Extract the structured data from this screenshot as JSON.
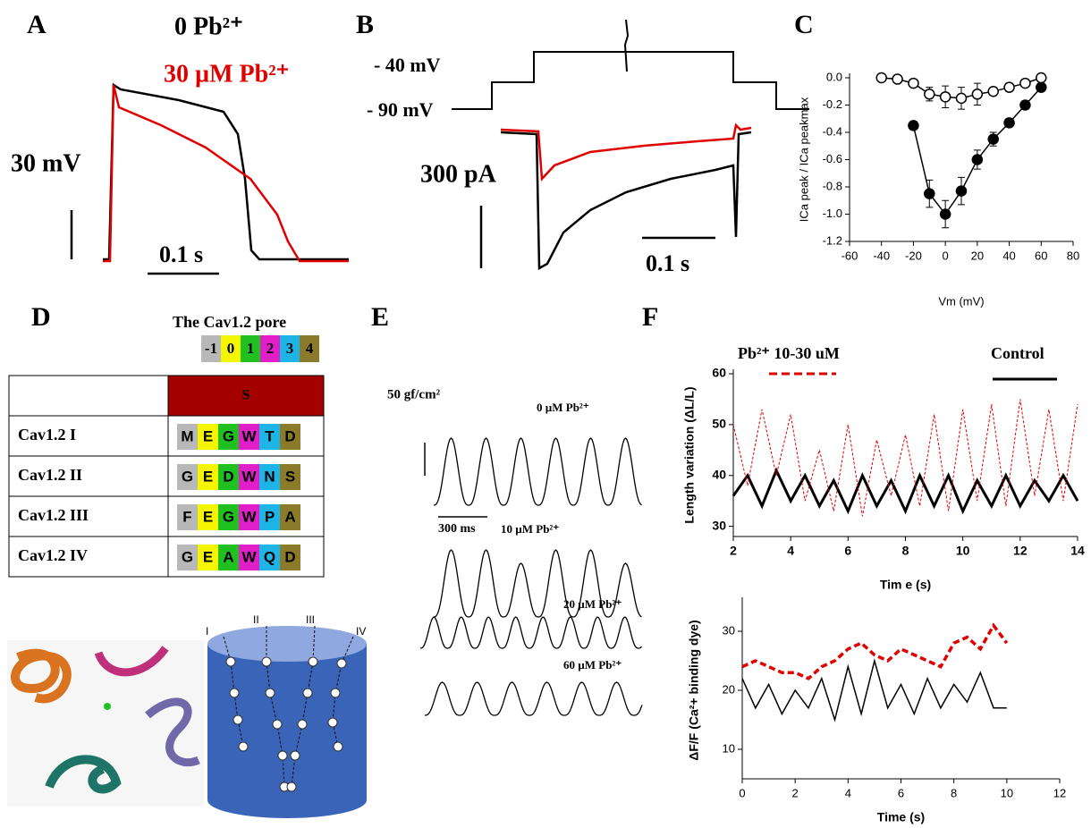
{
  "panels": {
    "a": {
      "label": "A",
      "traces": [
        {
          "name": "0 Pb²⁺",
          "color": "#000000"
        },
        {
          "name": "30 µM Pb²⁺",
          "color": "#e00000"
        }
      ],
      "scale_y": "30 mV",
      "scale_x": "0.1 s"
    },
    "b": {
      "label": "B",
      "steps": [
        "- 40 mV",
        "- 90 mV"
      ],
      "trace_colors": [
        "#000000",
        "#e00000"
      ],
      "scale_y": "300 pA",
      "scale_x": "0.1 s"
    },
    "c": {
      "label": "C"
    },
    "d": {
      "label": "D",
      "title": "The Cav1.2 pore",
      "positions": [
        "-1",
        "0",
        "1",
        "2",
        "3",
        "4"
      ],
      "position_colors": [
        "#b8b8b8",
        "#f5f500",
        "#21c021",
        "#e01fc8",
        "#1fb4e6",
        "#8a7a2a"
      ],
      "column": "S",
      "rows": [
        {
          "name": "Cav1.2 I",
          "residues": [
            "M",
            "E",
            "G",
            "W",
            "T",
            "D"
          ]
        },
        {
          "name": "Cav1.2 II",
          "residues": [
            "G",
            "E",
            "D",
            "W",
            "N",
            "S"
          ]
        },
        {
          "name": "Cav1.2 III",
          "residues": [
            "F",
            "E",
            "G",
            "W",
            "P",
            "A"
          ]
        },
        {
          "name": "Cav1.2 IV",
          "residues": [
            "G",
            "E",
            "A",
            "W",
            "Q",
            "D"
          ]
        }
      ],
      "domains": [
        "I",
        "II",
        "III",
        "IV"
      ]
    },
    "e": {
      "label": "E",
      "scale_y": "50 gf/cm²",
      "scale_x": "300 ms",
      "traces": [
        "0 µM Pb²⁺",
        "10 µM Pb²⁺",
        "20 µM Pb²⁺",
        "60 µM Pb²⁺"
      ]
    },
    "f": {
      "label": "F"
    }
  },
  "chart_data": [
    {
      "type": "scatter",
      "x": [
        -40,
        -30,
        -20,
        -10,
        0,
        10,
        20,
        30,
        40,
        50,
        60
      ],
      "series": [
        {
          "color": "#000000",
          "marker": "filled",
          "values": [
            null,
            null,
            -0.35,
            -0.85,
            -1.0,
            -0.83,
            -0.6,
            -0.45,
            -0.33,
            -0.2,
            -0.07
          ],
          "errors": [
            null,
            null,
            0.03,
            0.1,
            0.1,
            0.1,
            0.07,
            0.05,
            0.03,
            0.03,
            0.02
          ]
        },
        {
          "color": "#000000",
          "marker": "open",
          "values": [
            0,
            -0.01,
            -0.04,
            -0.12,
            -0.14,
            -0.15,
            -0.12,
            -0.1,
            -0.07,
            -0.04,
            0
          ],
          "errors": [
            0.02,
            0.02,
            0.02,
            0.05,
            0.08,
            0.08,
            0.08,
            0.03,
            0.03,
            0.02,
            0.02
          ]
        }
      ],
      "xlim": [
        -60,
        80
      ],
      "xticks": [
        -60,
        -40,
        -20,
        0,
        20,
        40,
        60,
        80
      ],
      "ylim": [
        -1.2,
        0
      ],
      "yticks": [
        {
          "value": 0,
          "label": "0.0"
        },
        -0.2,
        -0.4,
        -0.6,
        -0.8,
        {
          "value": -1,
          "label": "-1.0"
        },
        -1.2
      ],
      "xlabel": "Vm (mV)",
      "ylabel": "ICa peak / ICa peakmax"
    },
    {
      "type": "line",
      "x": [
        2,
        2.5,
        3,
        3.5,
        4,
        4.5,
        5,
        5.5,
        6,
        6.5,
        7,
        7.5,
        8,
        8.5,
        9,
        9.5,
        10,
        10.5,
        11,
        11.5,
        12,
        12.5,
        13,
        13.5,
        14
      ],
      "series": [
        {
          "color": "#000000",
          "width": 3,
          "dash": false,
          "values": [
            36,
            40,
            34,
            41,
            35,
            40,
            34,
            39,
            33,
            40,
            34,
            39,
            33,
            40,
            34,
            40,
            33,
            39,
            34,
            40,
            34,
            39,
            35,
            40,
            35
          ]
        },
        {
          "color": "#e00000",
          "width": 1,
          "dash": true,
          "values": [
            50,
            38,
            53,
            40,
            52,
            35,
            45,
            33,
            50,
            32,
            47,
            36,
            48,
            34,
            52,
            33,
            53,
            35,
            54,
            34,
            55,
            36,
            53,
            35,
            54
          ]
        }
      ],
      "xlim": [
        2,
        14
      ],
      "xticks": [
        2,
        4,
        6,
        8,
        10,
        12,
        14
      ],
      "ylim": [
        28,
        60
      ],
      "yticks": [
        30,
        40,
        50,
        60
      ],
      "xlabel": "Tim e (s)",
      "ylabel": "Length variation (ΔL/L)",
      "annotations": [
        {
          "text": "Pb²⁺ 10-30 uM",
          "color": "#e00000",
          "dash": true
        },
        {
          "text": "Control",
          "color": "#000000",
          "dash": false
        }
      ]
    },
    {
      "type": "line",
      "x": [
        0,
        0.5,
        1,
        1.5,
        2,
        2.5,
        3,
        3.5,
        4,
        4.5,
        5,
        5.5,
        6,
        6.5,
        7,
        7.5,
        8,
        8.5,
        9,
        9.5,
        10
      ],
      "series": [
        {
          "color": "#000000",
          "width": 1.5,
          "dash": false,
          "values": [
            22,
            17,
            21,
            16,
            20,
            17,
            22,
            15,
            24,
            16,
            25,
            17,
            21,
            16,
            22,
            17,
            21,
            18,
            23,
            17,
            17
          ]
        },
        {
          "color": "#e00000",
          "width": 3.5,
          "dash": true,
          "values": [
            24,
            25,
            24,
            23,
            23,
            22,
            24,
            25,
            27,
            28,
            26,
            25,
            27,
            26,
            25,
            24,
            28,
            29,
            27,
            31,
            28
          ]
        }
      ],
      "xlim": [
        0,
        12
      ],
      "xticks": [
        0,
        2,
        4,
        6,
        8,
        10,
        12
      ],
      "ylim": [
        5,
        35
      ],
      "yticks": [
        10,
        20,
        30
      ],
      "xlabel": "Time (s)",
      "ylabel": "ΔF/F (Ca²+ binding dye)"
    }
  ]
}
